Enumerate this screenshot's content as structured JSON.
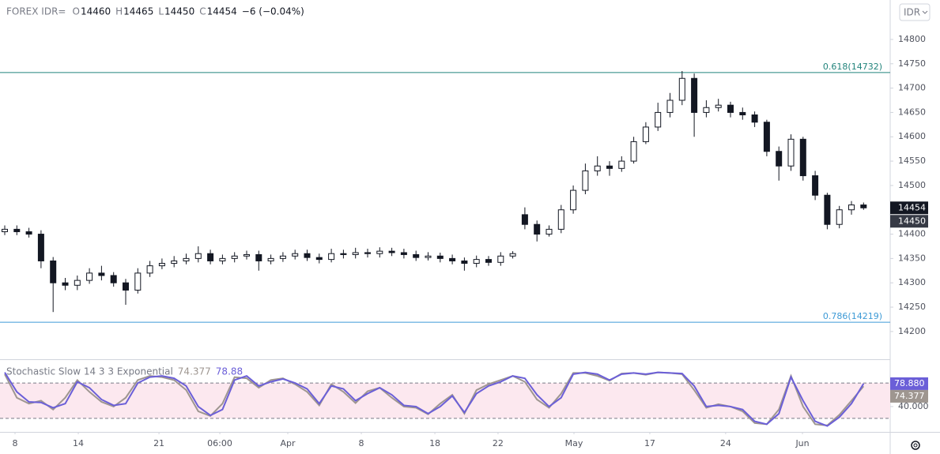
{
  "header": {
    "symbol": "FOREX IDR=",
    "ohlc": [
      {
        "key": "O",
        "value": 14460
      },
      {
        "key": "H",
        "value": 14465
      },
      {
        "key": "L",
        "value": 14450
      },
      {
        "key": "C",
        "value": 14454
      }
    ],
    "change": "−6 (−0.04%)"
  },
  "currency_button": "IDR",
  "chart_data": [
    {
      "type": "candlestick",
      "color": "#131722",
      "open": [
        14405,
        14410,
        14405,
        14400,
        14345,
        14300,
        14295,
        14305,
        14320,
        14315,
        14300,
        14285,
        14320,
        14335,
        14340,
        14345,
        14350,
        14360,
        14345,
        14350,
        14355,
        14358,
        14345,
        14350,
        14355,
        14360,
        14352,
        14348,
        14360,
        14358,
        14362,
        14360,
        14365,
        14362,
        14358,
        14352,
        14355,
        14350,
        14345,
        14340,
        14348,
        14342,
        14355,
        14440,
        14420,
        14400,
        14410,
        14450,
        14490,
        14530,
        14540,
        14535,
        14550,
        14590,
        14620,
        14650,
        14675,
        14720,
        14650,
        14660,
        14665,
        14650,
        14645,
        14630,
        14570,
        14540,
        14595,
        14520,
        14480,
        14420,
        14450,
        14460
      ],
      "high": [
        14418,
        14418,
        14413,
        14408,
        14353,
        14310,
        14315,
        14330,
        14335,
        14322,
        14308,
        14330,
        14345,
        14350,
        14355,
        14360,
        14375,
        14368,
        14358,
        14363,
        14366,
        14366,
        14358,
        14363,
        14368,
        14368,
        14360,
        14370,
        14368,
        14372,
        14370,
        14373,
        14372,
        14370,
        14366,
        14363,
        14362,
        14358,
        14352,
        14356,
        14355,
        14363,
        14365,
        14455,
        14428,
        14418,
        14460,
        14500,
        14545,
        14560,
        14550,
        14560,
        14600,
        14630,
        14670,
        14690,
        14735,
        14730,
        14675,
        14678,
        14672,
        14660,
        14652,
        14635,
        14580,
        14605,
        14600,
        14530,
        14485,
        14458,
        14468,
        14465
      ],
      "low": [
        14398,
        14398,
        14393,
        14330,
        14240,
        14285,
        14285,
        14298,
        14305,
        14292,
        14255,
        14278,
        14312,
        14328,
        14332,
        14338,
        14342,
        14338,
        14338,
        14342,
        14348,
        14325,
        14338,
        14343,
        14348,
        14345,
        14340,
        14342,
        14350,
        14350,
        14352,
        14352,
        14355,
        14350,
        14345,
        14346,
        14342,
        14338,
        14325,
        14332,
        14335,
        14335,
        14350,
        14410,
        14385,
        14395,
        14402,
        14442,
        14482,
        14520,
        14520,
        14528,
        14545,
        14585,
        14612,
        14640,
        14665,
        14600,
        14640,
        14652,
        14640,
        14635,
        14620,
        14560,
        14510,
        14530,
        14510,
        14470,
        14410,
        14412,
        14440,
        14450
      ],
      "close": [
        14410,
        14405,
        14400,
        14345,
        14300,
        14295,
        14305,
        14320,
        14315,
        14300,
        14285,
        14320,
        14335,
        14340,
        14345,
        14350,
        14360,
        14345,
        14350,
        14355,
        14358,
        14345,
        14350,
        14355,
        14360,
        14352,
        14348,
        14360,
        14358,
        14362,
        14360,
        14365,
        14362,
        14358,
        14352,
        14355,
        14350,
        14345,
        14340,
        14348,
        14342,
        14355,
        14360,
        14420,
        14400,
        14410,
        14450,
        14490,
        14530,
        14540,
        14535,
        14550,
        14590,
        14620,
        14650,
        14675,
        14720,
        14650,
        14660,
        14665,
        14650,
        14645,
        14630,
        14570,
        14540,
        14595,
        14520,
        14480,
        14420,
        14450,
        14460,
        14454
      ],
      "ylim": [
        14143,
        14881
      ],
      "yticks": [
        14200,
        14250,
        14300,
        14350,
        14400,
        14450,
        14500,
        14550,
        14600,
        14650,
        14700,
        14750,
        14800
      ],
      "annotations": [
        {
          "label": "0.618(14732)",
          "value": 14732,
          "color": "#22847c"
        },
        {
          "label": "0.786(14219)",
          "value": 14219,
          "color": "#3d9ad6"
        }
      ],
      "price_labels": [
        14454,
        14450
      ]
    },
    {
      "type": "line",
      "title": "Stochastic Slow 14 3 3 Exponential",
      "series": [
        {
          "color": "#9e9690",
          "values": [
            95,
            55,
            45,
            50,
            35,
            55,
            85,
            65,
            48,
            40,
            55,
            85,
            92,
            90,
            85,
            68,
            32,
            24,
            45,
            90,
            88,
            72,
            85,
            88,
            78,
            65,
            42,
            78,
            65,
            46,
            66,
            72,
            55,
            40,
            38,
            27,
            45,
            60,
            28,
            68,
            78,
            85,
            92,
            82,
            52,
            38,
            62,
            97,
            97,
            92,
            84,
            96,
            97,
            94,
            98,
            97,
            95,
            68,
            38,
            44,
            40,
            32,
            12,
            10,
            35,
            92,
            40,
            10,
            8,
            26,
            50,
            74.377
          ],
          "value_label": "74.377"
        },
        {
          "color": "#6b5fd8",
          "values": [
            98,
            65,
            48,
            47,
            38,
            45,
            82,
            72,
            52,
            42,
            45,
            80,
            90,
            92,
            88,
            75,
            40,
            25,
            35,
            85,
            92,
            75,
            82,
            87,
            80,
            70,
            45,
            75,
            70,
            50,
            62,
            72,
            60,
            42,
            40,
            28,
            40,
            58,
            30,
            62,
            75,
            82,
            92,
            88,
            60,
            40,
            55,
            95,
            98,
            95,
            85,
            95,
            97,
            95,
            98,
            97,
            96,
            75,
            40,
            42,
            40,
            35,
            15,
            10,
            28,
            90,
            50,
            15,
            7,
            22,
            45,
            78.88
          ],
          "value_label": "78.880"
        }
      ],
      "ylim": [
        -3,
        119
      ],
      "yticks": [
        {
          "value": 40,
          "label": "40.000"
        }
      ],
      "bands": [
        20,
        80
      ],
      "xticks": [
        {
          "value": 0.85,
          "label": "8"
        },
        {
          "value": 6.08,
          "label": "14"
        },
        {
          "value": 12.75,
          "label": "21"
        },
        {
          "value": 17.78,
          "label": "06:00"
        },
        {
          "value": 23.4,
          "label": "Apr"
        },
        {
          "value": 29.48,
          "label": "8"
        },
        {
          "value": 35.56,
          "label": "18"
        },
        {
          "value": 40.78,
          "label": "22"
        },
        {
          "value": 47.06,
          "label": "May"
        },
        {
          "value": 53.33,
          "label": "17"
        },
        {
          "value": 59.6,
          "label": "24"
        },
        {
          "value": 65.95,
          "label": "Jun"
        }
      ]
    }
  ]
}
